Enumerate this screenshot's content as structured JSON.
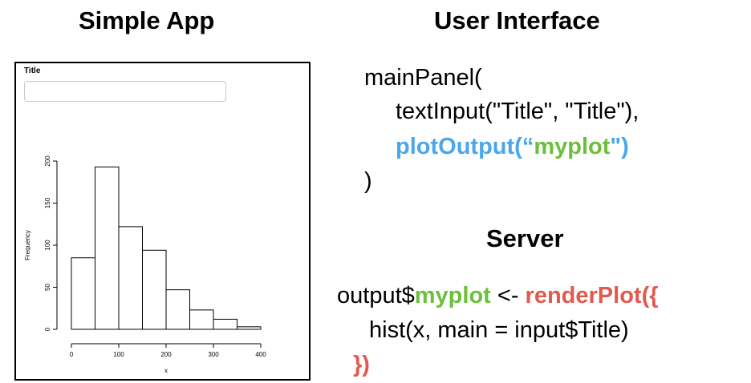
{
  "headings": {
    "simple_app": "Simple App",
    "user_interface": "User Interface",
    "server": "Server"
  },
  "app": {
    "input_label": "Title",
    "input_value": ""
  },
  "chart_data": {
    "type": "bar",
    "title": "",
    "xlabel": "x",
    "ylabel": "Frequency",
    "x_bin_edges": [
      0,
      50,
      100,
      150,
      200,
      250,
      300,
      350,
      400
    ],
    "values": [
      85,
      193,
      122,
      94,
      47,
      23,
      12,
      3
    ],
    "xlim": [
      0,
      400
    ],
    "ylim": [
      0,
      200
    ],
    "x_ticks": [
      "0",
      "100",
      "200",
      "300",
      "400"
    ],
    "y_ticks": [
      "0",
      "50",
      "100",
      "150",
      "200"
    ]
  },
  "ui_code": {
    "line1": "mainPanel(",
    "line2": "textInput(\"Title\", \"Title\"),",
    "line3_fn": "plotOutput(“",
    "line3_arg": "myplot",
    "line3_end": "\")",
    "line4": ")"
  },
  "server_code": {
    "line1_pre": "output$",
    "line1_out": "myplot",
    "line1_mid": " <- ",
    "line1_fn": "renderPlot({",
    "line2": "hist(x, main = input$Title)",
    "line3": "})"
  },
  "colors": {
    "ui_function": "#4ba6ea",
    "output_id": "#6cbf3a",
    "render_function": "#e25a4f"
  }
}
